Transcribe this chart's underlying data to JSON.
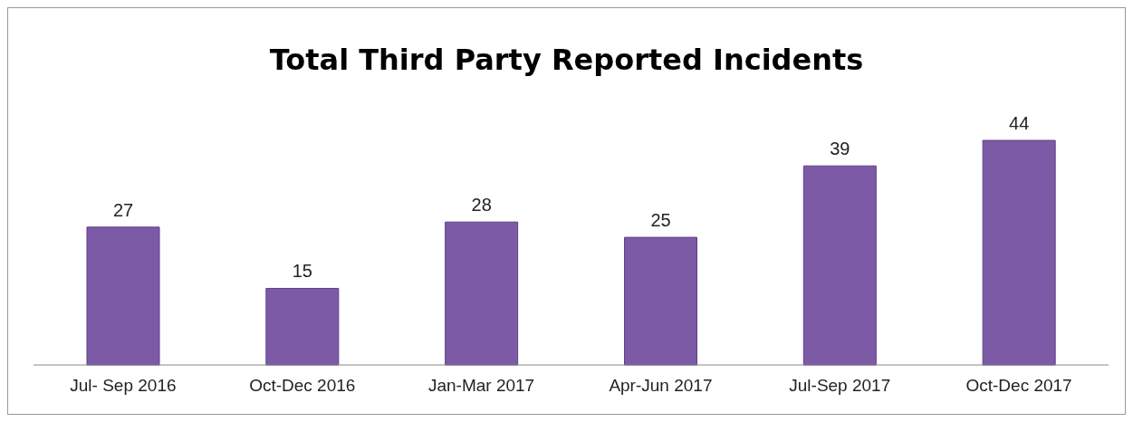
{
  "chart_data": {
    "type": "bar",
    "title": "Total Third Party Reported Incidents",
    "categories": [
      "Jul- Sep 2016",
      "Oct-Dec 2016",
      "Jan-Mar 2017",
      "Apr-Jun 2017",
      "Jul-Sep 2017",
      "Oct-Dec 2017"
    ],
    "values": [
      27,
      15,
      28,
      25,
      39,
      44
    ],
    "color": "#7d5aa6",
    "data_labels": true,
    "grid": false,
    "legend": false
  }
}
